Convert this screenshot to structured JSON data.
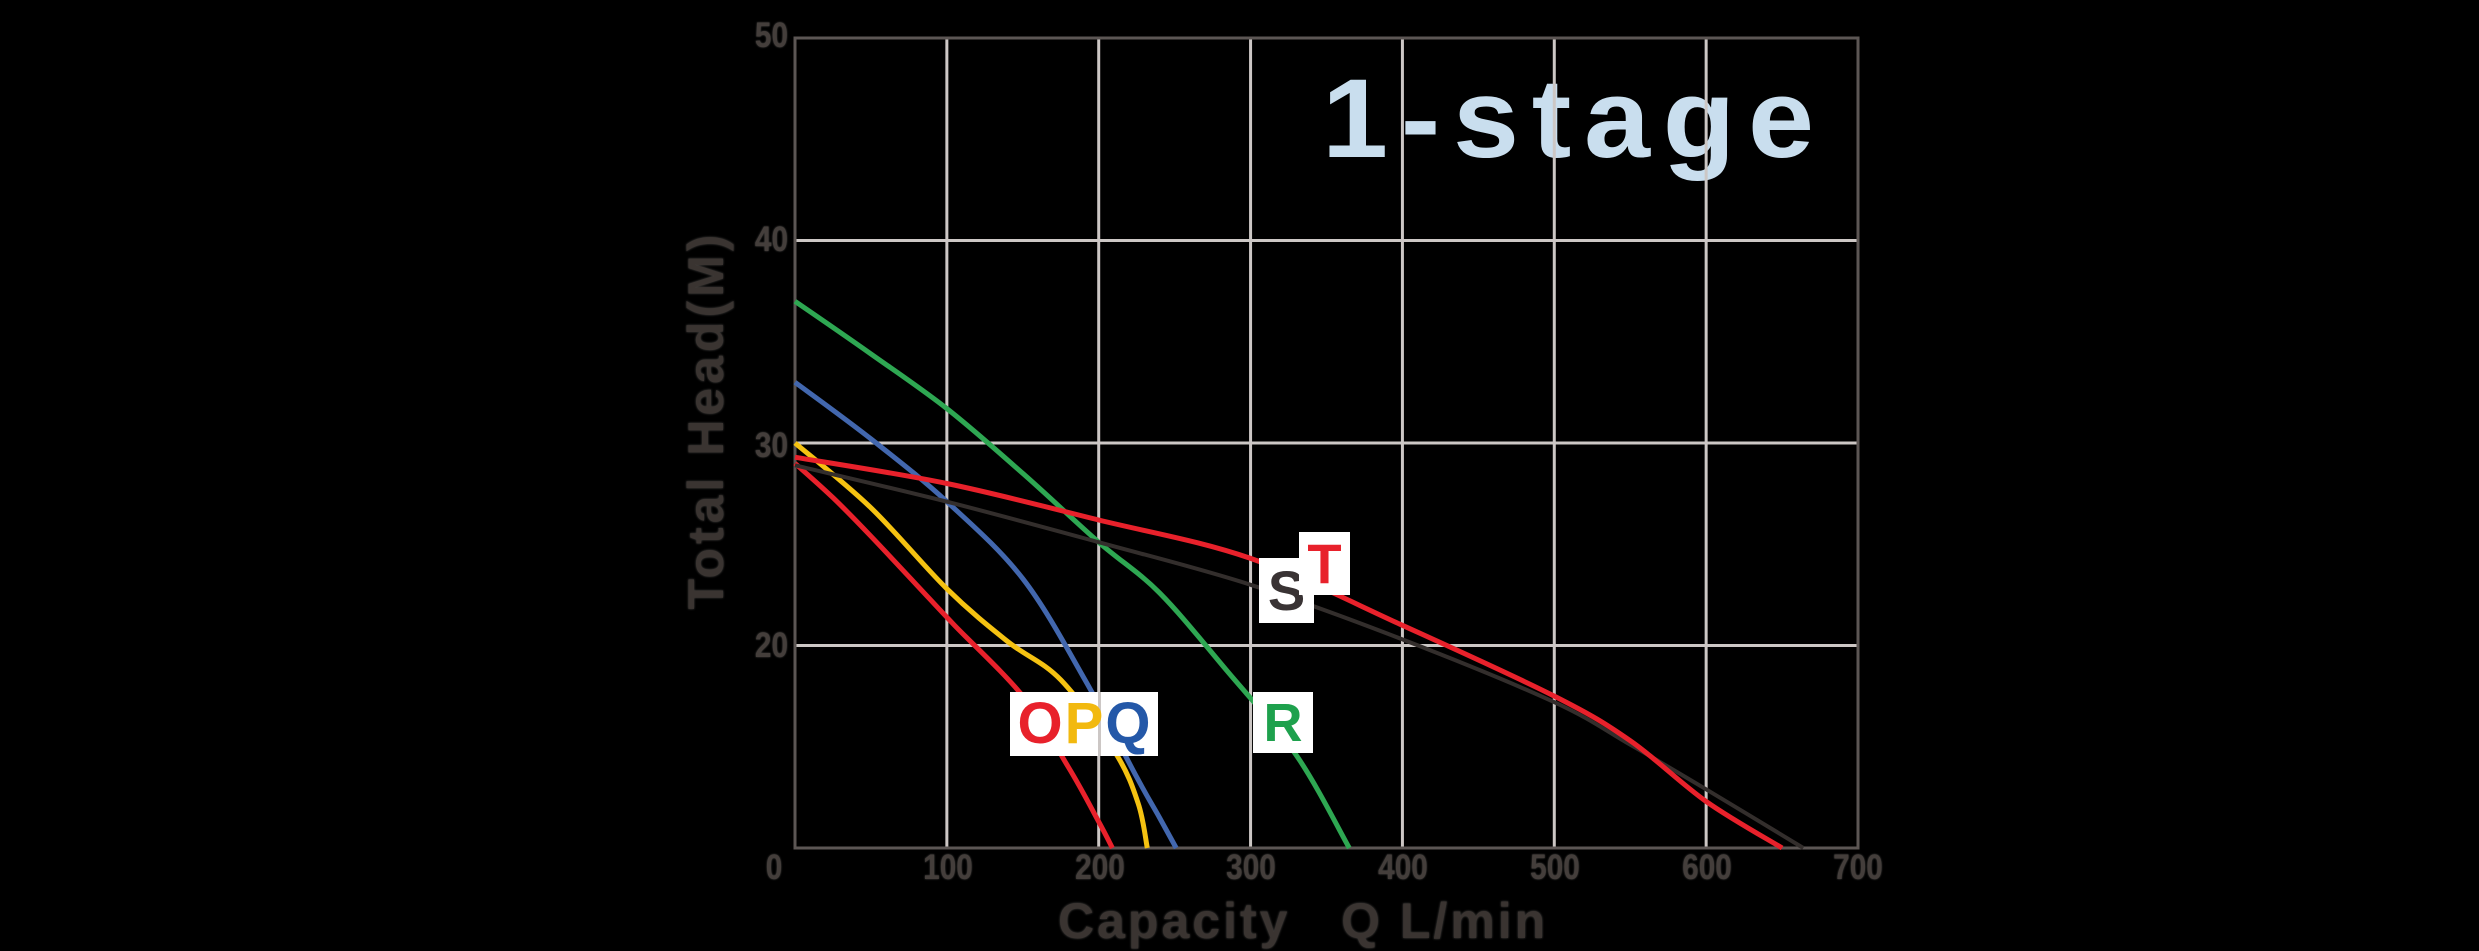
{
  "title": "1-stage",
  "title_color": "#c9deee",
  "axes": {
    "x": {
      "title": "Capacity   Q L/min",
      "ticks": [
        "0",
        "100",
        "200",
        "300",
        "400",
        "500",
        "600",
        "700"
      ]
    },
    "y": {
      "title": "Total Head(M)",
      "ticks": [
        "50",
        "40",
        "30",
        "20"
      ]
    }
  },
  "colors": {
    "background": "#000000",
    "gridline": "#ccc7c5",
    "plot_border": "#5c5654",
    "tick_text": "#443e3b",
    "axis_title_text": "#3a3431"
  },
  "curve_labels": [
    {
      "id": "O",
      "text": "O",
      "color": "#e8212b"
    },
    {
      "id": "P",
      "text": "P",
      "color": "#f2b90f"
    },
    {
      "id": "Q",
      "text": "Q",
      "color": "#2458a8"
    },
    {
      "id": "R",
      "text": "R",
      "color": "#1ea14d"
    },
    {
      "id": "S",
      "text": "S",
      "color": "#393334"
    },
    {
      "id": "T",
      "text": "T",
      "color": "#e8212b"
    }
  ],
  "chart_data": {
    "type": "line",
    "title": "1-stage",
    "xlabel": "Capacity Q L/min",
    "ylabel": "Total Head(M)",
    "xlim": [
      0,
      700
    ],
    "ylim": [
      10,
      50
    ],
    "grid": true,
    "x_gridlines": [
      100,
      200,
      300,
      400,
      500,
      600
    ],
    "y_gridlines": [
      20,
      30,
      40
    ],
    "x_tick_labels": [
      0,
      100,
      200,
      300,
      400,
      500,
      600,
      700
    ],
    "y_tick_labels": [
      20,
      30,
      40,
      50
    ],
    "origin_label": "0",
    "legend_position": "labels-on-curves",
    "series": [
      {
        "name": "O",
        "color": "#e8212b",
        "width": 5,
        "points": [
          [
            0,
            29
          ],
          [
            25,
            27.3
          ],
          [
            50,
            25.4
          ],
          [
            80,
            23
          ],
          [
            105,
            21
          ],
          [
            150,
            17.5
          ],
          [
            180,
            14
          ],
          [
            200,
            11.3
          ],
          [
            209,
            10
          ]
        ]
      },
      {
        "name": "P",
        "color": "#f5c211",
        "width": 5,
        "points": [
          [
            0,
            30
          ],
          [
            50,
            26.8
          ],
          [
            100,
            22.8
          ],
          [
            140,
            20.2
          ],
          [
            175,
            18.3
          ],
          [
            211,
            14.7
          ],
          [
            226,
            12.2
          ],
          [
            232,
            10
          ]
        ]
      },
      {
        "name": "Q",
        "color": "#4267ae",
        "width": 5,
        "points": [
          [
            0,
            33
          ],
          [
            50,
            30.2
          ],
          [
            100,
            27.1
          ],
          [
            150,
            23.3
          ],
          [
            191,
            18.3
          ],
          [
            225,
            13.5
          ],
          [
            240,
            11.5
          ],
          [
            251,
            10
          ]
        ]
      },
      {
        "name": "R",
        "color": "#2ea752",
        "width": 5,
        "points": [
          [
            0,
            37
          ],
          [
            50,
            34.4
          ],
          [
            100,
            31.7
          ],
          [
            150,
            28.5
          ],
          [
            200,
            25.1
          ],
          [
            240,
            22.6
          ],
          [
            285,
            18.7
          ],
          [
            330,
            14.6
          ],
          [
            365,
            10
          ]
        ]
      },
      {
        "name": "S",
        "color": "#332e2c",
        "width": 4,
        "points": [
          [
            0,
            28.9
          ],
          [
            100,
            27.1
          ],
          [
            200,
            25.1
          ],
          [
            300,
            23
          ],
          [
            400,
            20.3
          ],
          [
            500,
            17.2
          ],
          [
            550,
            15.1
          ],
          [
            600,
            12.9
          ],
          [
            664,
            10
          ]
        ]
      },
      {
        "name": "T",
        "color": "#e8212b",
        "width": 5,
        "points": [
          [
            0,
            29.3
          ],
          [
            100,
            28
          ],
          [
            200,
            26.2
          ],
          [
            300,
            24.3
          ],
          [
            400,
            21
          ],
          [
            500,
            17.5
          ],
          [
            550,
            15.3
          ],
          [
            600,
            12.3
          ],
          [
            650,
            10
          ]
        ]
      }
    ]
  }
}
